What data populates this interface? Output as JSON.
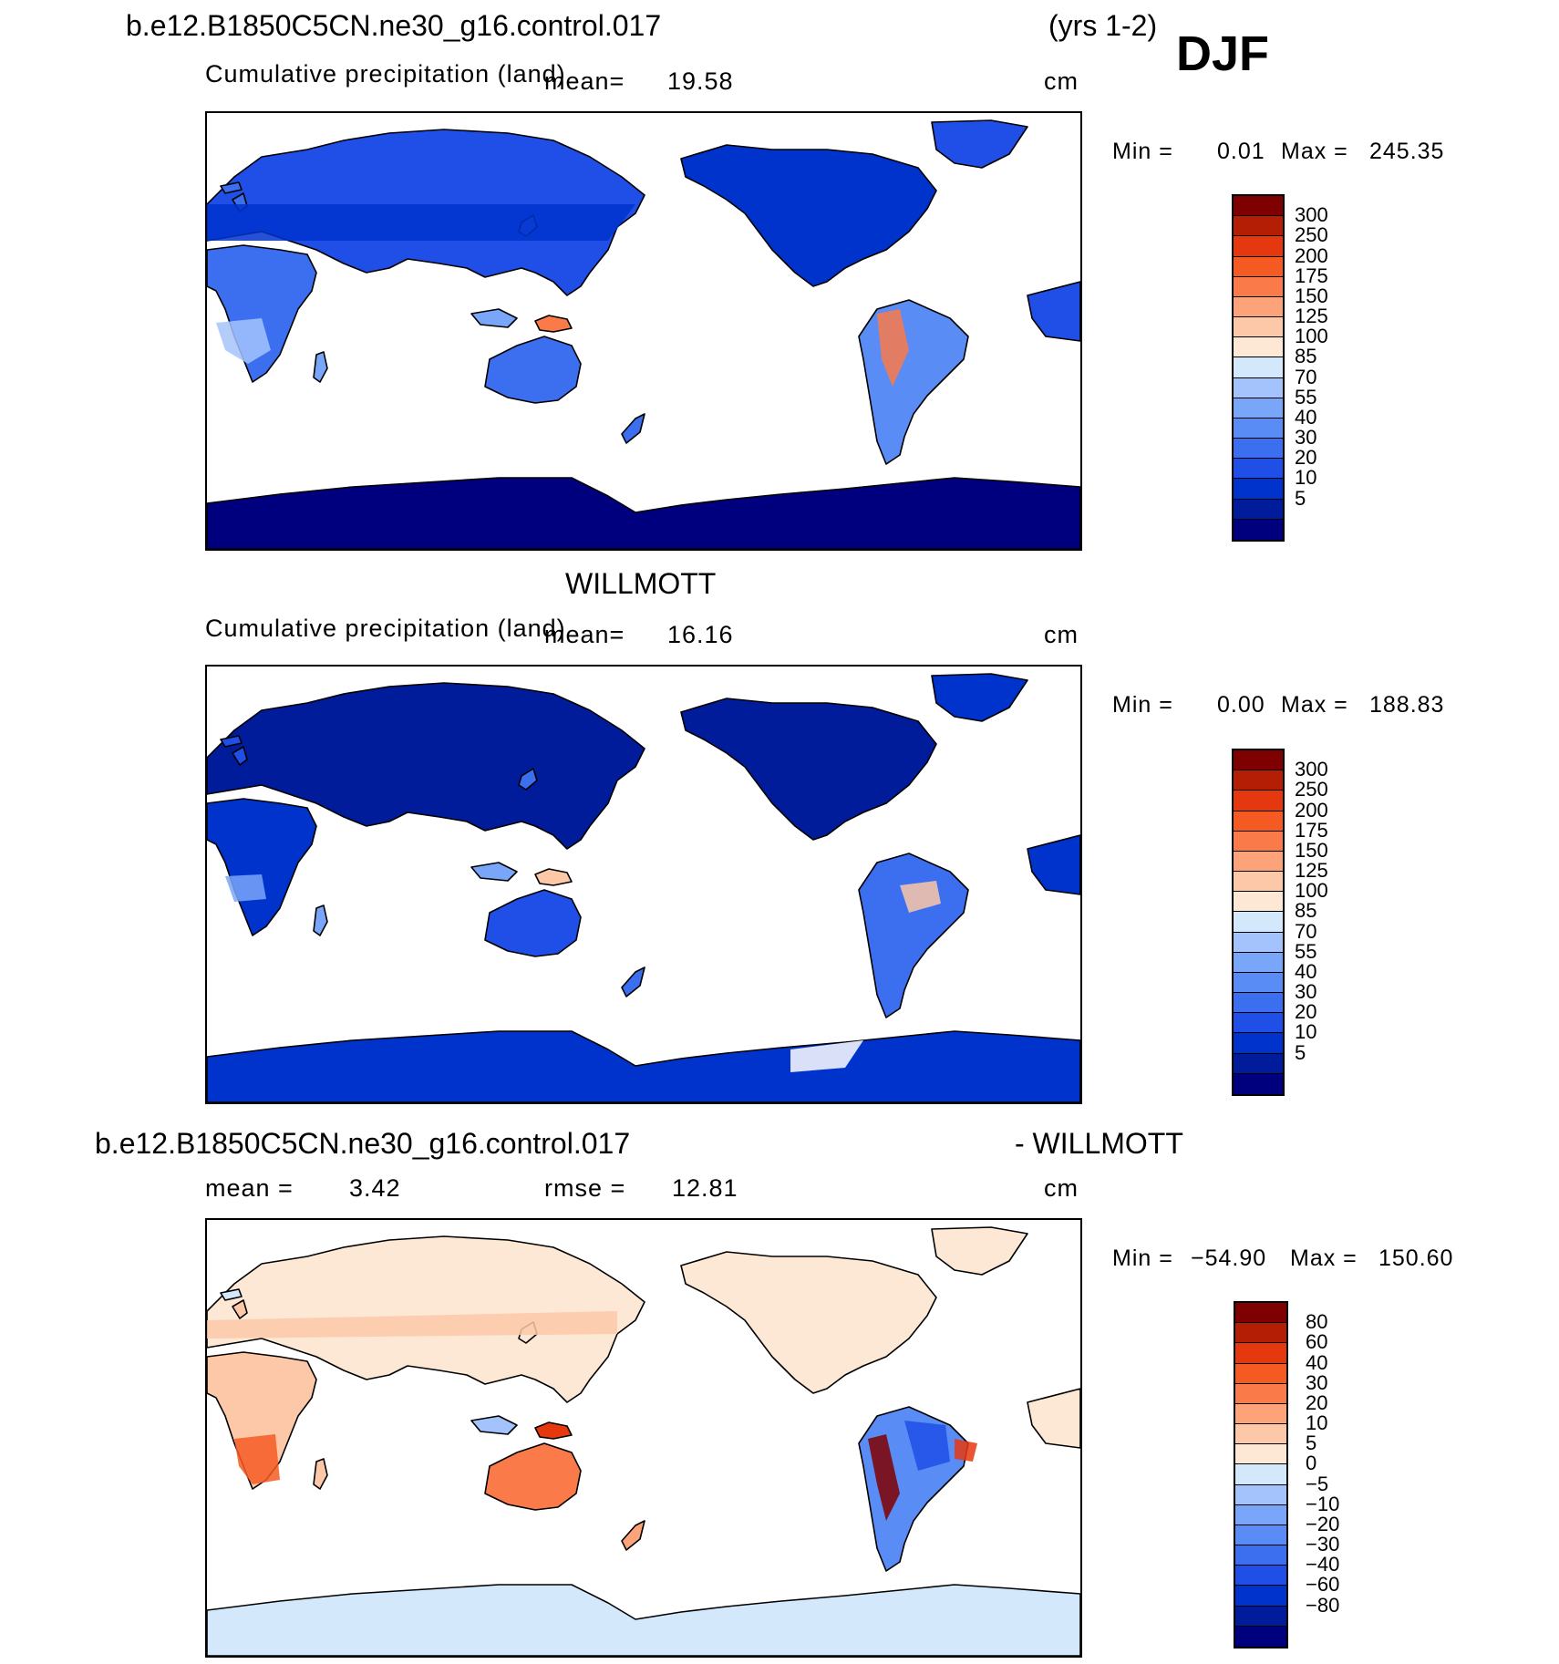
{
  "header": {
    "case_name": "b.e12.B1850C5CN.ne30_g16.control.017",
    "years": "(yrs 1-2)",
    "season": "DJF"
  },
  "colors": {
    "precip_scale": [
      "#00007f",
      "#001c9b",
      "#0033cc",
      "#1f4fe6",
      "#3b6ff0",
      "#5a8cf5",
      "#7aa6fa",
      "#a4c3fc",
      "#d4e8fc",
      "#fce8d4",
      "#fcc8a8",
      "#fca37a",
      "#fa7a4a",
      "#f55a23",
      "#e6380f",
      "#b41e05",
      "#7f0000"
    ],
    "diff_scale": [
      "#00007f",
      "#001c9b",
      "#0033cc",
      "#1f4fe6",
      "#3b6ff0",
      "#5a8cf5",
      "#7aa6fa",
      "#a4c3fc",
      "#d4e8fc",
      "#fce8d4",
      "#fcc8a8",
      "#fca37a",
      "#fa7a4a",
      "#f55a23",
      "#e6380f",
      "#b41e05",
      "#7f0000"
    ],
    "ocean": "#ffffff"
  },
  "panels": [
    {
      "heading": "",
      "label": "Cumulative precipitation (land)",
      "mean_label": "mean=",
      "mean_value": "19.58",
      "units": "cm",
      "min_label": "Min =",
      "min_value": "0.01",
      "max_label": "Max =",
      "max_value": "245.35",
      "colorbar_ticks": [
        "300",
        "250",
        "200",
        "175",
        "150",
        "125",
        "100",
        "85",
        "70",
        "55",
        "40",
        "30",
        "20",
        "10",
        "5"
      ],
      "land_intensity": "model"
    },
    {
      "heading": "WILLMOTT",
      "label": "Cumulative precipitation (land)",
      "mean_label": "mean=",
      "mean_value": "16.16",
      "units": "cm",
      "min_label": "Min =",
      "min_value": "0.00",
      "max_label": "Max =",
      "max_value": "188.83",
      "colorbar_ticks": [
        "300",
        "250",
        "200",
        "175",
        "150",
        "125",
        "100",
        "85",
        "70",
        "55",
        "40",
        "30",
        "20",
        "10",
        "5"
      ],
      "land_intensity": "obs"
    },
    {
      "heading_left": "b.e12.B1850C5CN.ne30_g16.control.017",
      "heading_right": "- WILLMOTT",
      "mean_label": "mean =",
      "mean_value": "3.42",
      "rmse_label": "rmse =",
      "rmse_value": "12.81",
      "units": "cm",
      "min_label": "Min =",
      "min_value": "−54.90",
      "max_label": "Max =",
      "max_value": "150.60",
      "colorbar_ticks": [
        "80",
        "60",
        "40",
        "30",
        "20",
        "10",
        "5",
        "0",
        "−5",
        "−10",
        "−20",
        "−30",
        "−40",
        "−60",
        "−80"
      ],
      "land_intensity": "diff"
    }
  ]
}
